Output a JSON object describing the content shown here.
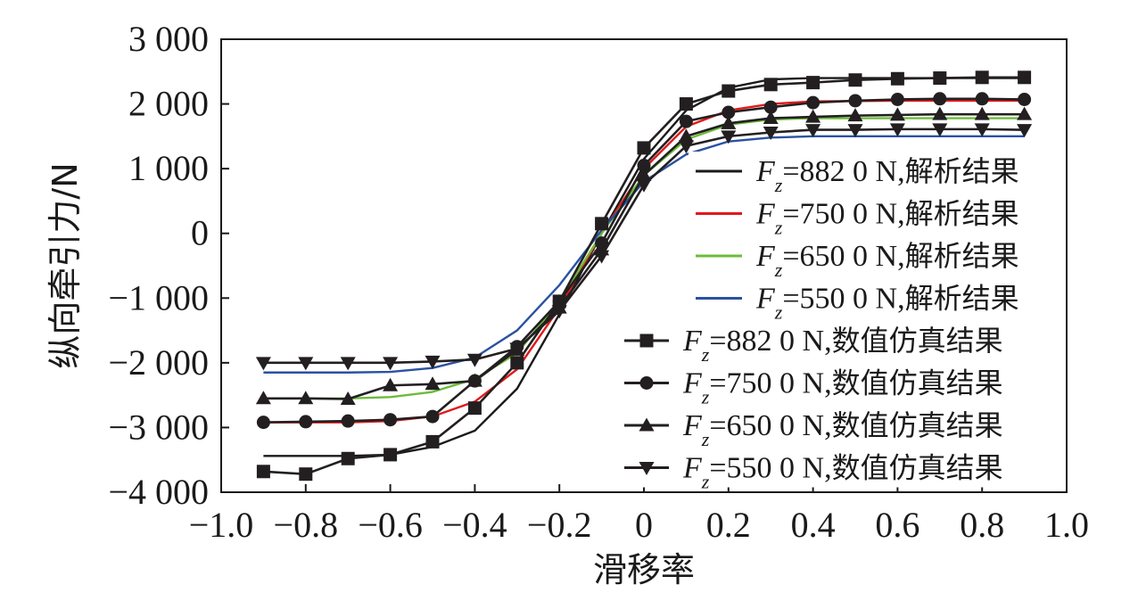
{
  "chart_data": {
    "type": "line",
    "xlabel": "滑移率",
    "ylabel": "纵向牵引力/N",
    "xlim": [
      -1.0,
      1.0
    ],
    "ylim": [
      -4000,
      3000
    ],
    "x_ticks": [
      "−1.0",
      "−0.8",
      "−0.6",
      "−0.4",
      "−0.2",
      "0",
      "0.2",
      "0.4",
      "0.6",
      "0.8",
      "1.0"
    ],
    "y_ticks": [
      "3 000",
      "2 000",
      "1 000",
      "0",
      "−1 000",
      "−2 000",
      "−3 000",
      "−4 000"
    ],
    "grid": false,
    "legend_position": "right",
    "series": [
      {
        "name": "Fz=882 0 N,解析结果",
        "legend_value": "=882 0 N,",
        "legend_suffix": "解析结果",
        "color": "#1a1a1a",
        "marker": "none",
        "x": [
          -0.9,
          -0.7,
          -0.6,
          -0.5,
          -0.4,
          -0.3,
          -0.2,
          -0.1,
          0,
          0.1,
          0.2,
          0.3,
          0.4,
          0.6,
          0.9
        ],
        "y": [
          -3440,
          -3440,
          -3420,
          -3300,
          -3050,
          -2400,
          -1250,
          0,
          1150,
          1900,
          2250,
          2380,
          2400,
          2400,
          2400
        ]
      },
      {
        "name": "Fz=750 0 N,解析结果",
        "legend_value": "=750 0 N,",
        "legend_suffix": "解析结果",
        "color": "#e0191b",
        "marker": "none",
        "x": [
          -0.9,
          -0.7,
          -0.6,
          -0.5,
          -0.4,
          -0.3,
          -0.2,
          -0.1,
          0,
          0.1,
          0.2,
          0.3,
          0.4,
          0.6,
          0.9
        ],
        "y": [
          -2920,
          -2920,
          -2900,
          -2830,
          -2600,
          -2100,
          -1150,
          0,
          1000,
          1650,
          1900,
          2000,
          2040,
          2050,
          2050
        ]
      },
      {
        "name": "Fz=650 0 N,解析结果",
        "legend_value": "=650 0 N,",
        "legend_suffix": "解析结果",
        "color": "#6cbc3a",
        "marker": "none",
        "x": [
          -0.9,
          -0.7,
          -0.6,
          -0.5,
          -0.4,
          -0.3,
          -0.2,
          -0.1,
          0,
          0.1,
          0.2,
          0.3,
          0.4,
          0.6,
          0.9
        ],
        "y": [
          -2550,
          -2550,
          -2530,
          -2450,
          -2250,
          -1850,
          -1050,
          0,
          900,
          1450,
          1680,
          1760,
          1780,
          1780,
          1780
        ]
      },
      {
        "name": "Fz=550 0 N,解析结果",
        "legend_value": "=550 0 N,",
        "legend_suffix": "解析结果",
        "color": "#2a52a0",
        "marker": "none",
        "x": [
          -0.9,
          -0.7,
          -0.6,
          -0.5,
          -0.4,
          -0.3,
          -0.2,
          -0.1,
          0,
          0.1,
          0.2,
          0.3,
          0.4,
          0.6,
          0.9
        ],
        "y": [
          -2150,
          -2150,
          -2140,
          -2080,
          -1920,
          -1500,
          -800,
          50,
          800,
          1220,
          1420,
          1480,
          1500,
          1500,
          1500
        ]
      },
      {
        "name": "Fz=882 0 N,数值仿真结果",
        "legend_value": "=882 0 N,",
        "legend_suffix": "数值仿真结果",
        "color": "#231f20",
        "marker": "square",
        "x": [
          -0.9,
          -0.8,
          -0.7,
          -0.6,
          -0.5,
          -0.4,
          -0.3,
          -0.2,
          -0.1,
          0,
          0.1,
          0.2,
          0.3,
          0.4,
          0.5,
          0.6,
          0.7,
          0.8,
          0.9
        ],
        "y": [
          -3680,
          -3720,
          -3480,
          -3420,
          -3220,
          -2700,
          -2000,
          -1050,
          150,
          1320,
          2000,
          2200,
          2300,
          2330,
          2370,
          2390,
          2400,
          2410,
          2410
        ]
      },
      {
        "name": "Fz=750 0 N,数值仿真结果",
        "legend_value": "=750 0 N,",
        "legend_suffix": "数值仿真结果",
        "color": "#231f20",
        "marker": "circle",
        "x": [
          -0.9,
          -0.8,
          -0.7,
          -0.6,
          -0.5,
          -0.4,
          -0.3,
          -0.2,
          -0.1,
          0,
          0.1,
          0.2,
          0.3,
          0.4,
          0.5,
          0.6,
          0.7,
          0.8,
          0.9
        ],
        "y": [
          -2920,
          -2910,
          -2900,
          -2880,
          -2830,
          -2280,
          -1750,
          -1050,
          -150,
          1050,
          1730,
          1870,
          1950,
          2020,
          2050,
          2070,
          2080,
          2080,
          2070
        ]
      },
      {
        "name": "Fz=650 0 N,数值仿真结果",
        "legend_value": "=650 0 N,",
        "legend_suffix": "数值仿真结果",
        "color": "#231f20",
        "marker": "triangle-up",
        "x": [
          -0.9,
          -0.8,
          -0.7,
          -0.6,
          -0.5,
          -0.4,
          -0.3,
          -0.2,
          -0.1,
          0,
          0.1,
          0.2,
          0.3,
          0.4,
          0.5,
          0.6,
          0.7,
          0.8,
          0.9
        ],
        "y": [
          -2550,
          -2550,
          -2560,
          -2350,
          -2330,
          -2280,
          -1800,
          -1150,
          -250,
          900,
          1500,
          1700,
          1780,
          1800,
          1820,
          1830,
          1840,
          1840,
          1840
        ]
      },
      {
        "name": "Fz=550 0 N,数值仿真结果",
        "legend_value": "=550 0 N,",
        "legend_suffix": "数值仿真结果",
        "color": "#231f20",
        "marker": "triangle-down",
        "x": [
          -0.9,
          -0.8,
          -0.7,
          -0.6,
          -0.5,
          -0.4,
          -0.3,
          -0.2,
          -0.1,
          0,
          0.1,
          0.2,
          0.3,
          0.4,
          0.5,
          0.6,
          0.7,
          0.8,
          0.9
        ],
        "y": [
          -2000,
          -2000,
          -2000,
          -2000,
          -1980,
          -1950,
          -1780,
          -1200,
          -350,
          750,
          1350,
          1500,
          1560,
          1600,
          1600,
          1610,
          1610,
          1610,
          1600
        ]
      }
    ]
  }
}
